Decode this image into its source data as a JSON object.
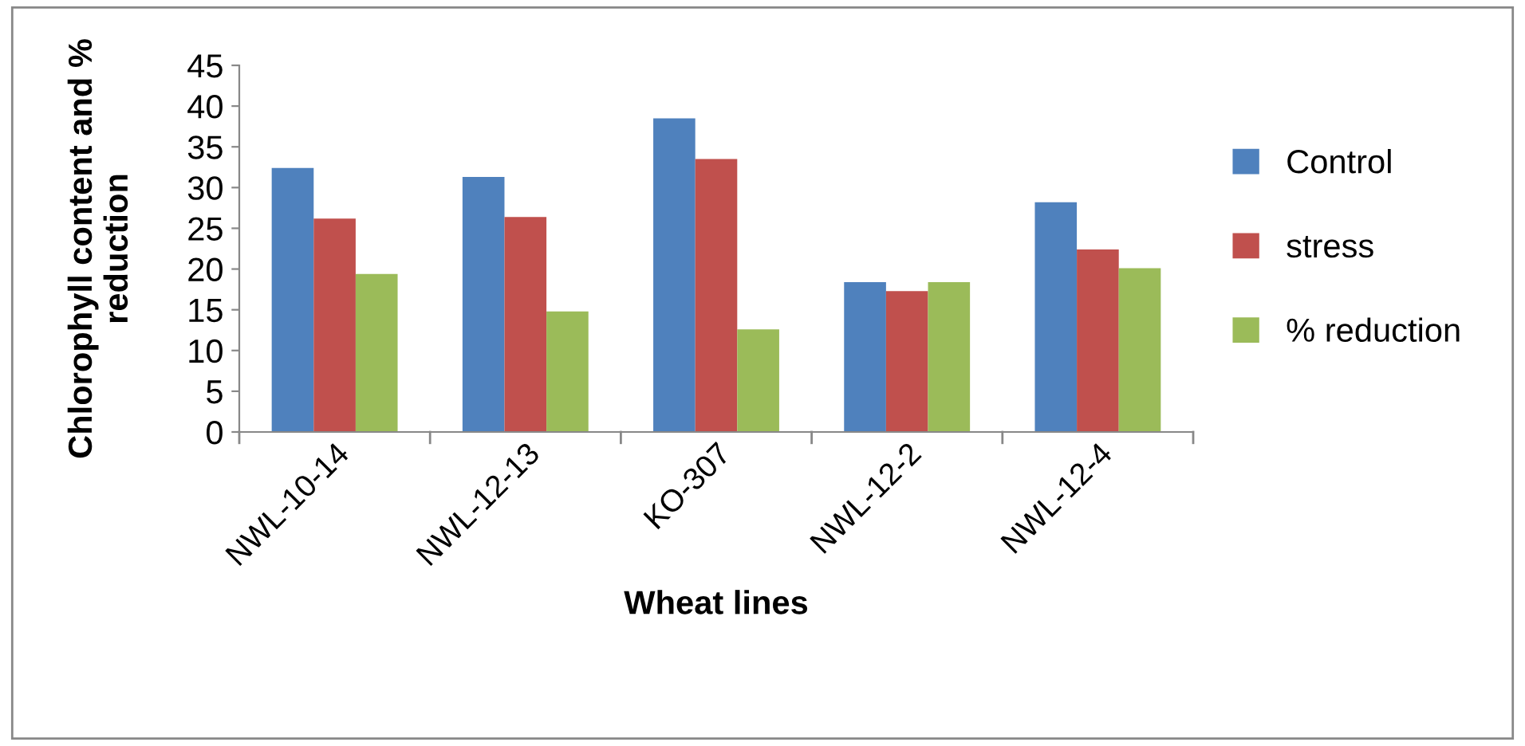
{
  "chart_data": {
    "type": "bar",
    "xlabel": "Wheat lines",
    "ylabel": "Chlorophyll content and % reduction",
    "categories": [
      "NWL-10-14",
      "NWL-12-13",
      "KO-307",
      "NWL-12-2",
      "NWL-12-4"
    ],
    "series": [
      {
        "name": "Control",
        "color": "#4f81bd",
        "values": [
          32.4,
          31.3,
          38.5,
          18.4,
          28.2
        ]
      },
      {
        "name": "stress",
        "color": "#c0504d",
        "values": [
          26.2,
          26.4,
          33.5,
          17.3,
          22.4
        ]
      },
      {
        "name": "% reduction",
        "color": "#9bbb59",
        "values": [
          19.4,
          14.8,
          12.6,
          18.4,
          20.1
        ]
      }
    ],
    "ylim": [
      0,
      45
    ],
    "yticks": [
      0,
      5,
      10,
      15,
      20,
      25,
      30,
      35,
      40,
      45
    ],
    "grid": false,
    "legend": "right"
  }
}
